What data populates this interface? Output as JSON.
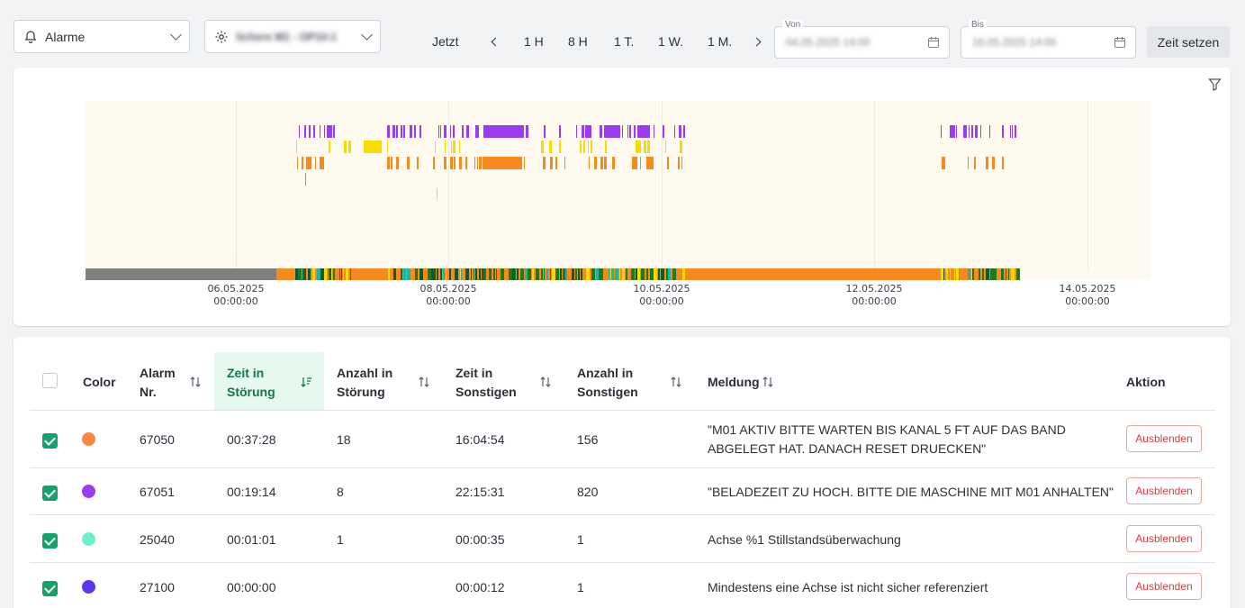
{
  "toolbar": {
    "alarm_select": "Alarme",
    "machine_select": "Schere M1 - OP10-1",
    "now": "Jetzt",
    "ranges": [
      "1 H",
      "8 H",
      "1 T.",
      "1 W.",
      "1 M."
    ],
    "from_label": "Von",
    "from_value": "04.05.2025 14:00",
    "to_label": "Bis",
    "to_value": "16.05.2025 14:00",
    "set_time": "Zeit setzen"
  },
  "chart_data": {
    "type": "timeline",
    "x_ticks": [
      {
        "date": "06.05.2025",
        "time": "00:00:00"
      },
      {
        "date": "08.05.2025",
        "time": "00:00:00"
      },
      {
        "date": "10.05.2025",
        "time": "00:00:00"
      },
      {
        "date": "12.05.2025",
        "time": "00:00:00"
      },
      {
        "date": "14.05.2025",
        "time": "00:00:00"
      }
    ],
    "colors": {
      "purple": "#9b3cf0",
      "yellow": "#f7dc00",
      "orange": "#f68a1f",
      "blue": "#4da6e8",
      "gray": "#7f7f7f",
      "green": "#1f7a1f",
      "dark_green": "#0e5c2a",
      "teal": "#1eb6a3",
      "background": "#fffaf0"
    }
  },
  "table": {
    "headers": {
      "color": "Color",
      "alarm_nr_1": "Alarm",
      "alarm_nr_2": "Nr.",
      "zeit_stoer_1": "Zeit in",
      "zeit_stoer_2": "Störung",
      "anz_stoer_1": "Anzahl in",
      "anz_stoer_2": "Störung",
      "zeit_sonst_1": "Zeit in",
      "zeit_sonst_2": "Sonstigen",
      "anz_sonst_1": "Anzahl in",
      "anz_sonst_2": "Sonstigen",
      "meldung": "Meldung",
      "aktion": "Aktion"
    },
    "rows": [
      {
        "color": "#f68a3c",
        "nr": "67050",
        "zeit_stoer": "00:37:28",
        "anz_stoer": "18",
        "zeit_sonst": "16:04:54",
        "anz_sonst": "156",
        "meldung_1": "\"M01 AKTIV BITTE WARTEN BIS KANAL 5 FT AUF DAS BAND",
        "meldung_2": "ABGELEGT HAT. DANACH RESET DRUECKEN\"",
        "action": "Ausblenden"
      },
      {
        "color": "#9b3cf0",
        "nr": "67051",
        "zeit_stoer": "00:19:14",
        "anz_stoer": "8",
        "zeit_sonst": "22:15:31",
        "anz_sonst": "820",
        "meldung_1": "\"BELADEZEIT ZU HOCH. BITTE DIE MASCHINE MIT M01 ANHALTEN\"",
        "meldung_2": "",
        "action": "Ausblenden"
      },
      {
        "color": "#6ef0d0",
        "nr": "25040",
        "zeit_stoer": "00:01:01",
        "anz_stoer": "1",
        "zeit_sonst": "00:00:35",
        "anz_sonst": "1",
        "meldung_1": "Achse %1 Stillstandsüberwachung",
        "meldung_2": "",
        "action": "Ausblenden"
      },
      {
        "color": "#5b35f0",
        "nr": "27100",
        "zeit_stoer": "00:00:00",
        "anz_stoer": "",
        "zeit_sonst": "00:00:12",
        "anz_sonst": "1",
        "meldung_1": "Mindestens eine Achse ist nicht sicher referenziert",
        "meldung_2": "",
        "action": "Ausblenden"
      }
    ]
  }
}
